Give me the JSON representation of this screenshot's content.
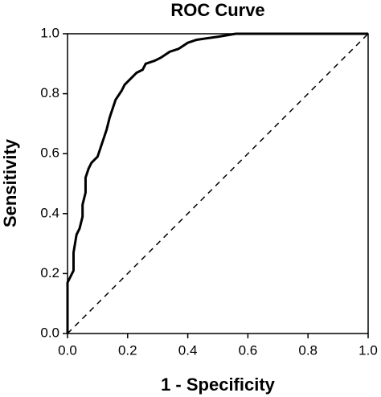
{
  "chart_data": {
    "type": "line",
    "title": "ROC Curve",
    "x_label": "1 - Specificity",
    "y_label": "Sensitivity",
    "x": [
      0,
      0,
      0.01,
      0.02,
      0.02,
      0.03,
      0.04,
      0.05,
      0.05,
      0.06,
      0.06,
      0.07,
      0.08,
      0.1,
      0.11,
      0.12,
      0.13,
      0.14,
      0.15,
      0.16,
      0.18,
      0.19,
      0.21,
      0.23,
      0.25,
      0.26,
      0.29,
      0.31,
      0.34,
      0.37,
      0.4,
      0.43,
      0.5,
      0.56,
      0.7,
      1.0
    ],
    "values": [
      0,
      0.17,
      0.19,
      0.21,
      0.27,
      0.33,
      0.35,
      0.39,
      0.43,
      0.47,
      0.52,
      0.55,
      0.57,
      0.59,
      0.62,
      0.65,
      0.68,
      0.72,
      0.75,
      0.78,
      0.81,
      0.83,
      0.85,
      0.87,
      0.88,
      0.9,
      0.91,
      0.92,
      0.94,
      0.95,
      0.97,
      0.98,
      0.99,
      1.0,
      1.0,
      1.0
    ],
    "color": "#000000",
    "xlim": [
      0,
      1
    ],
    "ylim": [
      0,
      1
    ],
    "xticks": [
      {
        "value": 0,
        "label": "0.0"
      },
      0.2,
      0.4,
      0.6,
      0.8,
      {
        "value": 1,
        "label": "1.0"
      }
    ],
    "yticks": [
      {
        "value": 0,
        "label": "0.0"
      },
      0.2,
      0.4,
      0.6,
      0.8,
      {
        "value": 1,
        "label": "1.0"
      }
    ],
    "grid": false
  }
}
